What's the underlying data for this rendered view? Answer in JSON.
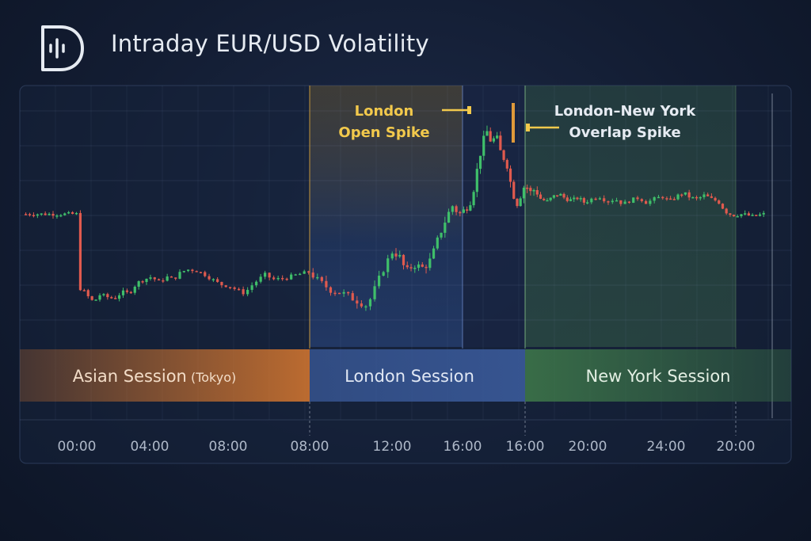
{
  "title": "Intraday EUR/USD Volatility",
  "logo_icon": "d-waveform-logo-icon",
  "colors": {
    "up": "#3fbf6a",
    "down": "#e05a4e",
    "asian": "#d9782e",
    "london": "#2f4f8f",
    "newyork": "#3f7a4a",
    "london_annot": "#f2c94c",
    "ny_annot": "#e6ebf2"
  },
  "chart_data": {
    "type": "candlestick",
    "x_tick_labels": [
      "00:00",
      "04:00",
      "08:00",
      "08:00",
      "12:00",
      "16:00",
      "16:00",
      "20:00",
      "24:00",
      "20:00"
    ],
    "sessions": [
      {
        "name": "Asian Session",
        "sub": "(Tokyo)",
        "start_tick": 0,
        "end_tick": 3
      },
      {
        "name": "London Session",
        "sub": "",
        "start_tick": 3,
        "end_tick": 6
      },
      {
        "name": "New York Session",
        "sub": "",
        "start_tick": 6,
        "end_tick": 9
      }
    ],
    "annotations": [
      {
        "text": [
          "London",
          "Open Spike"
        ],
        "color": "london_annot"
      },
      {
        "text": [
          "London–New York",
          "Overlap Spike"
        ],
        "color": "ny_annot"
      }
    ],
    "grid": true,
    "price_path_keypoints": [
      [
        0,
        0.3
      ],
      [
        0.08,
        0.28
      ],
      [
        0.16,
        0.22
      ],
      [
        0.23,
        0.18
      ],
      [
        0.32,
        0.24
      ],
      [
        0.42,
        0.22
      ],
      [
        0.52,
        0.21
      ],
      [
        0.62,
        0.26
      ],
      [
        0.72,
        0.25
      ],
      [
        0.82,
        0.33
      ],
      [
        0.92,
        0.36
      ],
      [
        1.02,
        0.38
      ],
      [
        1.12,
        0.34
      ],
      [
        1.22,
        0.38
      ],
      [
        1.3,
        0.36
      ],
      [
        1.4,
        0.42
      ],
      [
        1.5,
        0.44
      ],
      [
        1.6,
        0.43
      ],
      [
        1.7,
        0.4
      ],
      [
        1.8,
        0.36
      ],
      [
        1.9,
        0.32
      ],
      [
        2.0,
        0.31
      ],
      [
        2.1,
        0.28
      ],
      [
        2.2,
        0.25
      ],
      [
        2.3,
        0.32
      ],
      [
        2.45,
        0.4
      ],
      [
        2.55,
        0.36
      ],
      [
        2.7,
        0.37
      ],
      [
        2.85,
        0.4
      ],
      [
        3.0,
        0.42
      ],
      [
        3.1,
        0.35
      ],
      [
        3.25,
        0.28
      ],
      [
        3.4,
        0.25
      ],
      [
        3.55,
        0.2
      ],
      [
        3.7,
        0.15
      ],
      [
        3.8,
        0.3
      ],
      [
        3.9,
        0.45
      ],
      [
        4.0,
        0.58
      ],
      [
        4.1,
        0.55
      ],
      [
        4.2,
        0.42
      ],
      [
        4.3,
        0.48
      ],
      [
        4.45,
        0.45
      ],
      [
        4.55,
        0.52
      ],
      [
        4.65,
        0.68
      ],
      [
        4.75,
        0.82
      ],
      [
        4.85,
        0.95
      ],
      [
        4.95,
        0.88
      ],
      [
        5.05,
        0.92
      ],
      [
        5.15,
        1.0
      ],
      [
        5.22,
        1.2
      ],
      [
        5.3,
        1.4
      ],
      [
        5.38,
        1.55
      ],
      [
        5.46,
        1.45
      ],
      [
        5.54,
        1.5
      ],
      [
        5.62,
        1.35
      ],
      [
        5.7,
        1.3
      ],
      [
        5.78,
        1.1
      ],
      [
        5.86,
        0.95
      ],
      [
        5.92,
        1.02
      ],
      [
        6.0,
        1.12
      ],
      [
        6.08,
        1.05
      ],
      [
        6.16,
        1.08
      ],
      [
        6.25,
        1.0
      ],
      [
        6.35,
        0.98
      ],
      [
        6.45,
        1.02
      ],
      [
        6.55,
        1.04
      ],
      [
        6.65,
        1.0
      ],
      [
        6.75,
        0.99
      ],
      [
        6.85,
        1.01
      ],
      [
        6.95,
        0.97
      ],
      [
        7.05,
        1.0
      ],
      [
        7.15,
        1.02
      ],
      [
        7.25,
        0.98
      ],
      [
        7.35,
        1.0
      ],
      [
        7.45,
        0.96
      ],
      [
        7.55,
        0.99
      ],
      [
        7.65,
        1.01
      ],
      [
        7.75,
        0.97
      ],
      [
        7.85,
        1.0
      ],
      [
        7.95,
        1.02
      ],
      [
        8.05,
        0.98
      ],
      [
        8.15,
        1.02
      ],
      [
        8.25,
        1.05
      ],
      [
        8.35,
        1.01
      ],
      [
        8.45,
        1.0
      ],
      [
        8.55,
        1.03
      ],
      [
        8.65,
        1.0
      ],
      [
        8.75,
        0.98
      ],
      [
        8.85,
        0.9
      ],
      [
        8.95,
        0.87
      ],
      [
        9.1,
        0.88
      ],
      [
        9.25,
        0.86
      ],
      [
        9.4,
        0.88
      ]
    ],
    "y_range": [
      0,
      1.7
    ]
  }
}
